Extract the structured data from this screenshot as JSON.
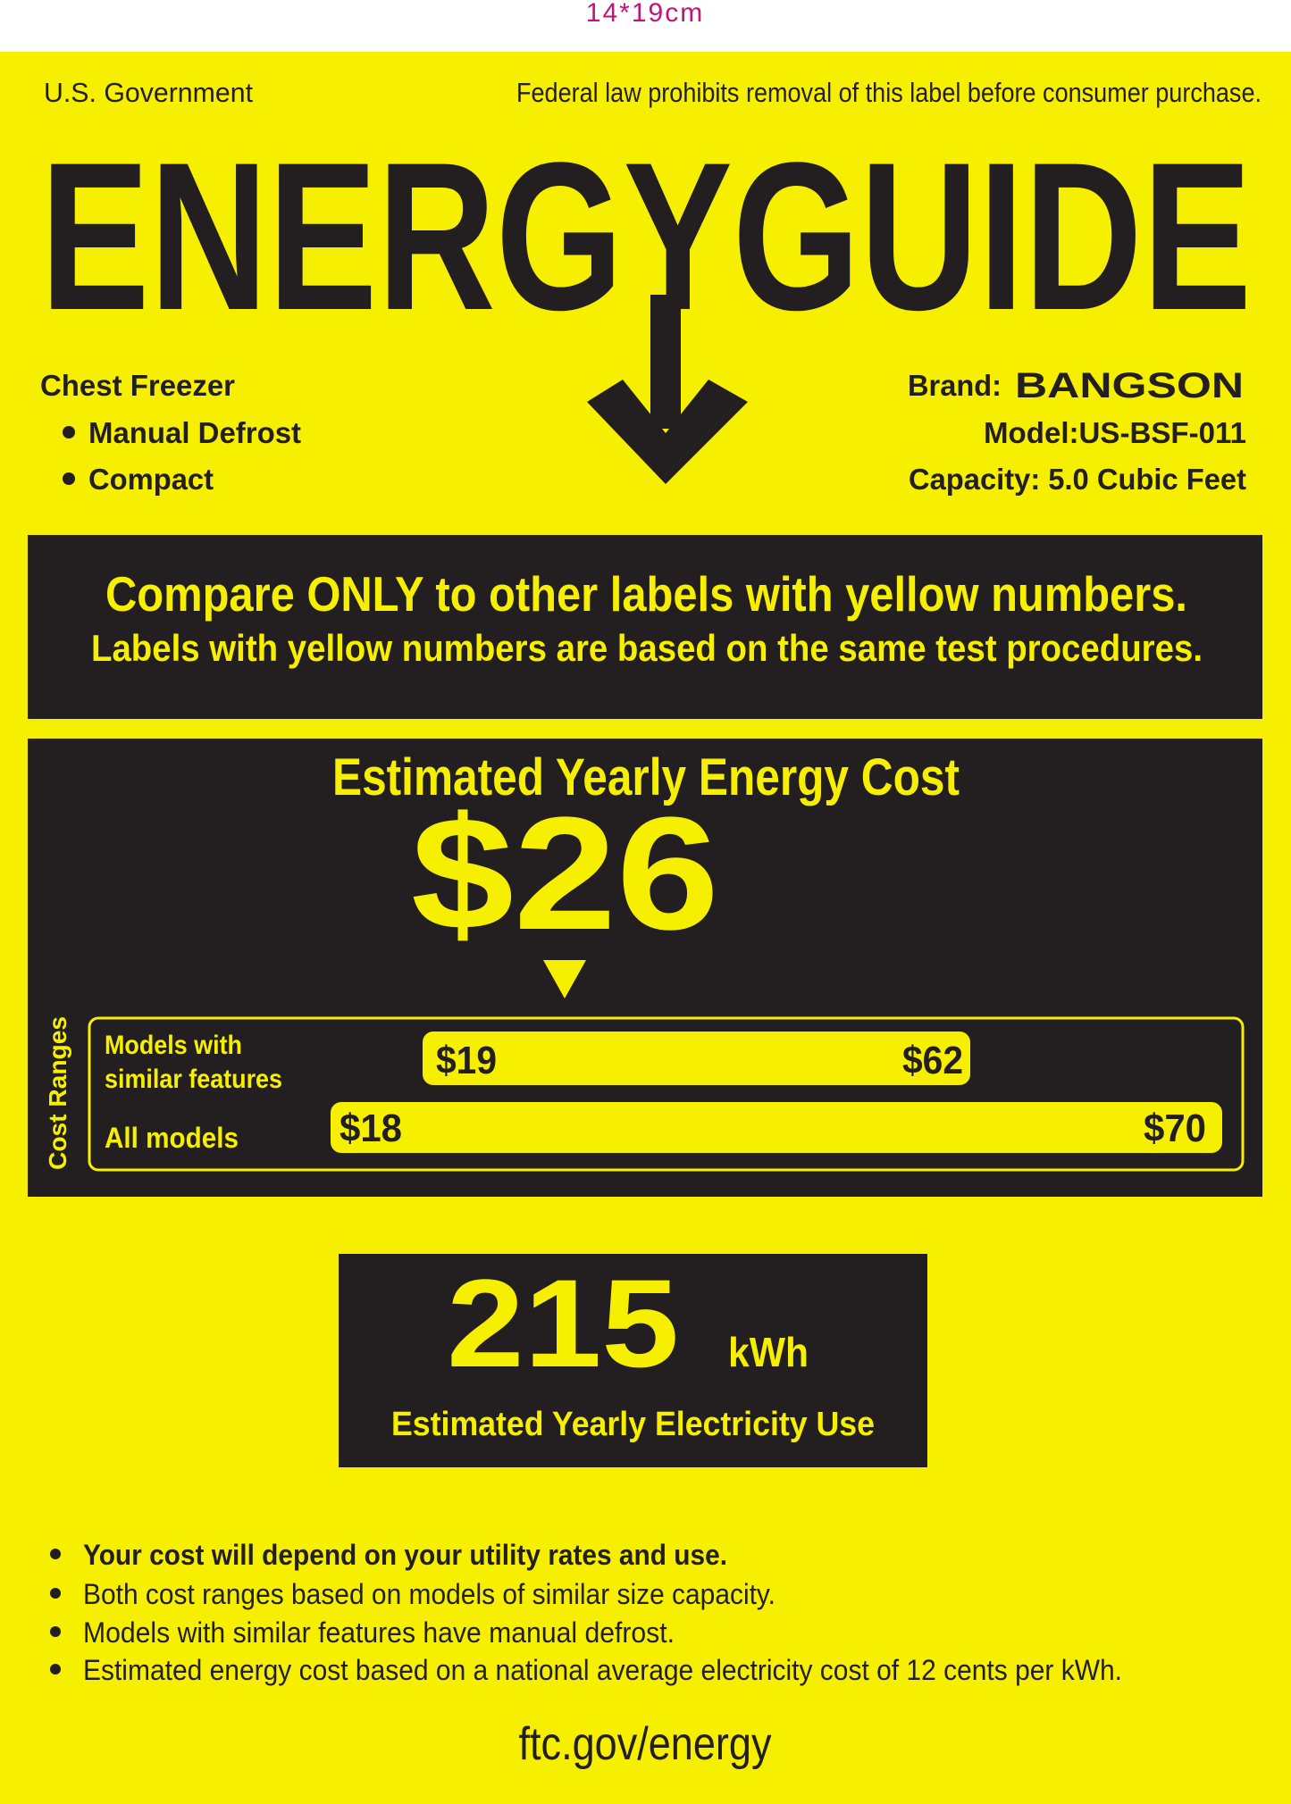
{
  "size_note": "14*19cm",
  "header": {
    "government": "U.S. Government",
    "notice": "Federal law prohibits removal of this label before consumer purchase."
  },
  "title": "ENERGYGUIDE",
  "product": {
    "type": "Chest Freezer",
    "features": [
      "Manual Defrost",
      "Compact"
    ],
    "brand_label": "Brand:",
    "brand": "BANGSON",
    "model": "Model:US-BSF-011",
    "capacity": "Capacity: 5.0 Cubic Feet"
  },
  "compare": {
    "headline": "Compare ONLY to other labels with yellow numbers.",
    "subline": "Labels with yellow numbers are based on the same test procedures."
  },
  "cost": {
    "heading": "Estimated Yearly Energy Cost",
    "amount": "$26",
    "ranges_label": "Cost Ranges",
    "similar": {
      "label": [
        "Models with",
        "similar features"
      ],
      "low": "$19",
      "high": "$62"
    },
    "all": {
      "label": "All models",
      "low": "$18",
      "high": "$70"
    }
  },
  "electricity": {
    "amount": "215",
    "unit": "kWh",
    "caption": "Estimated Yearly Electricity Use"
  },
  "notes": [
    "Your cost will depend on your utility rates and use.",
    "Both cost ranges based on models of similar size capacity.",
    "Models with similar features have manual defrost.",
    "Estimated energy cost based on a national average electricity cost of 12 cents per kWh."
  ],
  "footer": "ftc.gov/energy"
}
